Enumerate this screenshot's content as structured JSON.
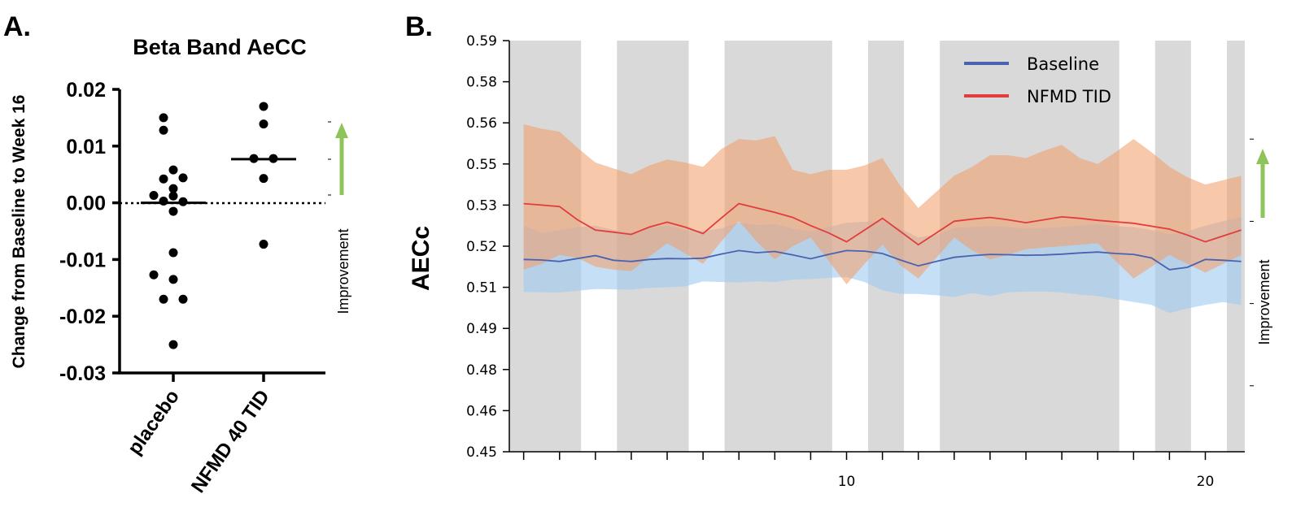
{
  "colors": {
    "baseline": "#4a63b0",
    "baseline_band": "#9fcbf0",
    "nfmd": "#e23c3c",
    "nfmd_band": "#f39a66",
    "shading": "#d9d9d9",
    "arrow": "#8ec45a"
  },
  "panel_a": {
    "letter": "A.",
    "improvement_label": "Improvement",
    "chart_data": {
      "type": "scatter",
      "title": "Beta Band AeCC",
      "ylabel": "Change from Baseline to Week 16",
      "xlabel": "",
      "ylim": [
        -0.03,
        0.02
      ],
      "yticks": [
        "0.02",
        "0.01",
        "0.00",
        "-0.01",
        "-0.02",
        "-0.03"
      ],
      "yticks_values": [
        0.02,
        0.01,
        0.0,
        -0.01,
        -0.02,
        -0.03
      ],
      "categories": [
        "placebo",
        "NFMD 40 TID"
      ],
      "reference_line": 0.0,
      "series": [
        {
          "category": "placebo",
          "points": [
            {
              "dx": -1,
              "y": 0.015
            },
            {
              "dx": -1,
              "y": 0.0128
            },
            {
              "dx": 0,
              "y": 0.0058
            },
            {
              "dx": 1,
              "y": 0.0044
            },
            {
              "dx": -1,
              "y": 0.0042
            },
            {
              "dx": 0,
              "y": 0.0025
            },
            {
              "dx": -2,
              "y": 0.0013
            },
            {
              "dx": 0,
              "y": 0.0012
            },
            {
              "dx": -1,
              "y": 0.0003
            },
            {
              "dx": 1,
              "y": 0.0002
            },
            {
              "dx": 0,
              "y": -0.0015
            },
            {
              "dx": 0,
              "y": -0.0088
            },
            {
              "dx": -2,
              "y": -0.0127
            },
            {
              "dx": 0,
              "y": -0.0135
            },
            {
              "dx": -1,
              "y": -0.017
            },
            {
              "dx": 1,
              "y": -0.017
            },
            {
              "dx": 0,
              "y": -0.025
            }
          ],
          "median": 0.0
        },
        {
          "category": "NFMD 40 TID",
          "points": [
            {
              "dx": 0,
              "y": 0.017
            },
            {
              "dx": 0,
              "y": 0.0139
            },
            {
              "dx": -1,
              "y": 0.0078
            },
            {
              "dx": 1,
              "y": 0.0078
            },
            {
              "dx": 0,
              "y": 0.0043
            },
            {
              "dx": 0,
              "y": -0.0073
            }
          ],
          "median": 0.0077
        }
      ]
    }
  },
  "panel_b": {
    "letter": "B.",
    "improvement_label": "Improvement",
    "chart_data": {
      "type": "line",
      "title": "",
      "ylabel": "AECc",
      "xlabel": "",
      "xlim": [
        0.6,
        21.1
      ],
      "ylim": [
        0.45,
        0.59
      ],
      "yticks": [
        "0.59",
        "0.58",
        "0.56",
        "0.55",
        "0.53",
        "0.52",
        "0.51",
        "0.49",
        "0.48",
        "0.46",
        "0.45"
      ],
      "yticks_values": [
        0.59,
        0.576,
        0.562,
        0.548,
        0.534,
        0.52,
        0.506,
        0.492,
        0.478,
        0.464,
        0.45
      ],
      "xticks": [
        "10",
        "20"
      ],
      "xticks_values": [
        10,
        20
      ],
      "x_minor_ticks": [
        1,
        2,
        3,
        4,
        5,
        6,
        7,
        8,
        9,
        10,
        11,
        12,
        13,
        14,
        15,
        16,
        17,
        18,
        19,
        20
      ],
      "legend": {
        "position": "top-right",
        "entries": [
          "Baseline",
          "NFMD TID"
        ]
      },
      "shaded_regions": [
        [
          0.6,
          2.6
        ],
        [
          3.6,
          5.6
        ],
        [
          6.6,
          9.6
        ],
        [
          10.6,
          11.6
        ],
        [
          12.6,
          17.6
        ],
        [
          18.6,
          19.6
        ],
        [
          20.6,
          21.1
        ]
      ],
      "x": [
        1,
        1.5,
        2,
        2.5,
        3,
        3.5,
        4,
        4.5,
        5,
        5.5,
        6,
        6.5,
        7,
        7.5,
        8,
        8.5,
        9,
        9.5,
        10,
        10.5,
        11,
        11.5,
        12,
        12.5,
        13,
        13.5,
        14,
        14.5,
        15,
        15.5,
        16,
        16.5,
        17,
        17.5,
        18,
        18.5,
        19,
        19.5,
        20,
        20.5,
        21
      ],
      "series": [
        {
          "name": "Baseline",
          "values": [
            0.5155,
            0.5153,
            0.5148,
            0.5158,
            0.5168,
            0.5152,
            0.5148,
            0.5155,
            0.5158,
            0.5157,
            0.5159,
            0.5173,
            0.5185,
            0.5178,
            0.5182,
            0.517,
            0.5157,
            0.5172,
            0.5185,
            0.5183,
            0.5175,
            0.5153,
            0.5133,
            0.5148,
            0.5162,
            0.5168,
            0.5172,
            0.5171,
            0.5169,
            0.517,
            0.5173,
            0.5177,
            0.518,
            0.5175,
            0.5172,
            0.516,
            0.512,
            0.5128,
            0.5155,
            0.5152,
            0.5148
          ],
          "lower": [
            0.5044,
            0.5043,
            0.5042,
            0.5048,
            0.5054,
            0.5053,
            0.5052,
            0.5058,
            0.506,
            0.5063,
            0.508,
            0.5078,
            0.5077,
            0.508,
            0.5078,
            0.5086,
            0.5088,
            0.5092,
            0.5095,
            0.5078,
            0.505,
            0.5038,
            0.5037,
            0.5033,
            0.5027,
            0.504,
            0.503,
            0.5043,
            0.5045,
            0.5046,
            0.5042,
            0.5035,
            0.503,
            0.502,
            0.501,
            0.5,
            0.4972,
            0.4988,
            0.5,
            0.501,
            0.5
          ],
          "upper": [
            0.527,
            0.5245,
            0.5255,
            0.5265,
            0.527,
            0.5255,
            0.5245,
            0.5262,
            0.527,
            0.5255,
            0.5252,
            0.526,
            0.528,
            0.5272,
            0.5275,
            0.526,
            0.525,
            0.5265,
            0.528,
            0.5283,
            0.5285,
            0.526,
            0.523,
            0.524,
            0.5262,
            0.5265,
            0.5268,
            0.5265,
            0.526,
            0.5262,
            0.5265,
            0.527,
            0.5275,
            0.5268,
            0.5265,
            0.5255,
            0.524,
            0.525,
            0.527,
            0.5285,
            0.53
          ]
        },
        {
          "name": "NFMD TID",
          "values": [
            0.5345,
            0.534,
            0.5335,
            0.529,
            0.5255,
            0.5248,
            0.524,
            0.5265,
            0.5282,
            0.5265,
            0.5243,
            0.5295,
            0.5345,
            0.533,
            0.5315,
            0.5298,
            0.527,
            0.5245,
            0.5215,
            0.5255,
            0.5295,
            0.525,
            0.5205,
            0.5245,
            0.5285,
            0.5292,
            0.5298,
            0.529,
            0.528,
            0.529,
            0.53,
            0.5295,
            0.5288,
            0.5283,
            0.5278,
            0.5268,
            0.5258,
            0.5238,
            0.5215,
            0.5235,
            0.5255
          ],
          "lower": [
            0.512,
            0.514,
            0.517,
            0.516,
            0.513,
            0.512,
            0.5115,
            0.5165,
            0.521,
            0.5175,
            0.514,
            0.5215,
            0.5285,
            0.5215,
            0.5155,
            0.52,
            0.523,
            0.515,
            0.507,
            0.514,
            0.5205,
            0.5135,
            0.509,
            0.516,
            0.523,
            0.5185,
            0.5155,
            0.517,
            0.519,
            0.5195,
            0.52,
            0.5205,
            0.521,
            0.515,
            0.509,
            0.513,
            0.517,
            0.514,
            0.511,
            0.514,
            0.517
          ],
          "upper": [
            0.5615,
            0.56,
            0.559,
            0.5535,
            0.5485,
            0.5465,
            0.5445,
            0.5475,
            0.5495,
            0.5485,
            0.547,
            0.553,
            0.5565,
            0.556,
            0.5575,
            0.546,
            0.5445,
            0.546,
            0.546,
            0.5475,
            0.55,
            0.5405,
            0.533,
            0.5385,
            0.544,
            0.547,
            0.551,
            0.551,
            0.55,
            0.5525,
            0.5545,
            0.55,
            0.548,
            0.552,
            0.5565,
            0.552,
            0.547,
            0.5435,
            0.541,
            0.5425,
            0.544
          ]
        }
      ]
    }
  }
}
